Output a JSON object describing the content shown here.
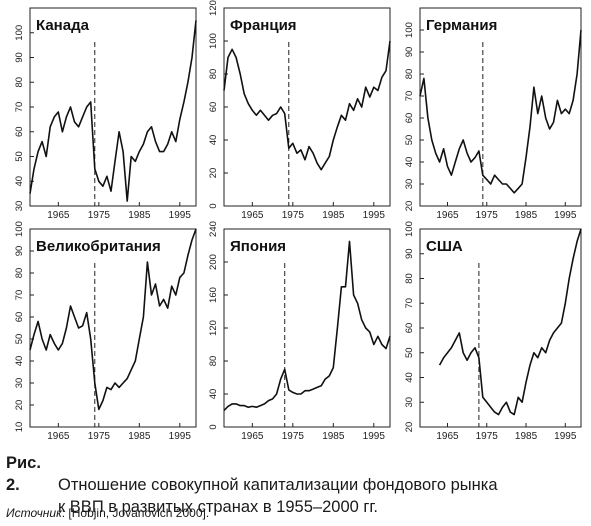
{
  "figure": {
    "label": "Рис. 2.",
    "caption_line1": "Отношение совокупной капитализации фондового рынка",
    "caption_line2": "к ВВП в развитых странах в 1955–2000 гг.",
    "source_prefix": "Источник",
    "source_text": ": [Hobjin, Jovanovich 2000]."
  },
  "chart_data": [
    {
      "type": "line",
      "title": "Канада",
      "xlim": [
        1958,
        1999
      ],
      "ylim": [
        30,
        110
      ],
      "xticks": [
        1965,
        1975,
        1985,
        1995
      ],
      "yticks": [
        30,
        40,
        50,
        60,
        70,
        80,
        90,
        100
      ],
      "vline": 1974,
      "series": [
        {
          "x": [
            1958,
            1959,
            1960,
            1961,
            1962,
            1963,
            1964,
            1965,
            1966,
            1967,
            1968,
            1969,
            1970,
            1971,
            1972,
            1973,
            1974,
            1975,
            1976,
            1977,
            1978,
            1979,
            1980,
            1981,
            1982,
            1983,
            1984,
            1985,
            1986,
            1987,
            1988,
            1989,
            1990,
            1991,
            1992,
            1993,
            1994,
            1995,
            1996,
            1997,
            1998,
            1999
          ],
          "y": [
            35,
            45,
            52,
            56,
            50,
            62,
            66,
            68,
            60,
            66,
            70,
            64,
            62,
            66,
            70,
            72,
            45,
            40,
            38,
            42,
            36,
            48,
            60,
            52,
            32,
            50,
            48,
            52,
            55,
            60,
            62,
            56,
            52,
            52,
            55,
            60,
            56,
            65,
            72,
            80,
            90,
            105
          ]
        }
      ]
    },
    {
      "type": "line",
      "title": "Франция",
      "xlim": [
        1958,
        1999
      ],
      "ylim": [
        0,
        120
      ],
      "xticks": [
        1965,
        1975,
        1985,
        1995
      ],
      "yticks": [
        0,
        20,
        40,
        60,
        80,
        100,
        120
      ],
      "vline": 1974,
      "series": [
        {
          "x": [
            1958,
            1959,
            1960,
            1961,
            1962,
            1963,
            1964,
            1965,
            1966,
            1967,
            1968,
            1969,
            1970,
            1971,
            1972,
            1973,
            1974,
            1975,
            1976,
            1977,
            1978,
            1979,
            1980,
            1981,
            1982,
            1983,
            1984,
            1985,
            1986,
            1987,
            1988,
            1989,
            1990,
            1991,
            1992,
            1993,
            1994,
            1995,
            1996,
            1997,
            1998,
            1999
          ],
          "y": [
            70,
            90,
            95,
            90,
            80,
            68,
            62,
            58,
            55,
            58,
            55,
            52,
            55,
            56,
            60,
            56,
            35,
            38,
            32,
            34,
            28,
            36,
            32,
            26,
            22,
            26,
            30,
            40,
            48,
            55,
            52,
            62,
            58,
            65,
            60,
            72,
            66,
            72,
            70,
            78,
            82,
            100
          ]
        }
      ]
    },
    {
      "type": "line",
      "title": "Германия",
      "xlim": [
        1958,
        1999
      ],
      "ylim": [
        20,
        110
      ],
      "xticks": [
        1965,
        1975,
        1985,
        1995
      ],
      "yticks": [
        20,
        30,
        40,
        50,
        60,
        70,
        80,
        90,
        100
      ],
      "vline": 1974,
      "series": [
        {
          "x": [
            1958,
            1959,
            1960,
            1961,
            1962,
            1963,
            1964,
            1965,
            1966,
            1967,
            1968,
            1969,
            1970,
            1971,
            1972,
            1973,
            1974,
            1975,
            1976,
            1977,
            1978,
            1979,
            1980,
            1981,
            1982,
            1983,
            1984,
            1985,
            1986,
            1987,
            1988,
            1989,
            1990,
            1991,
            1992,
            1993,
            1994,
            1995,
            1996,
            1997,
            1998,
            1999
          ],
          "y": [
            70,
            78,
            60,
            50,
            44,
            40,
            46,
            38,
            34,
            40,
            46,
            50,
            44,
            40,
            42,
            45,
            34,
            32,
            30,
            34,
            32,
            30,
            30,
            28,
            26,
            28,
            30,
            42,
            56,
            74,
            62,
            70,
            60,
            55,
            58,
            68,
            62,
            64,
            62,
            68,
            80,
            100
          ]
        }
      ]
    },
    {
      "type": "line",
      "title": "Великобритания",
      "xlim": [
        1958,
        1999
      ],
      "ylim": [
        10,
        100
      ],
      "xticks": [
        1965,
        1975,
        1985,
        1995
      ],
      "yticks": [
        10,
        20,
        30,
        40,
        50,
        60,
        70,
        80,
        90,
        100
      ],
      "vline": 1974,
      "series": [
        {
          "x": [
            1958,
            1959,
            1960,
            1961,
            1962,
            1963,
            1964,
            1965,
            1966,
            1967,
            1968,
            1969,
            1970,
            1971,
            1972,
            1973,
            1974,
            1975,
            1976,
            1977,
            1978,
            1979,
            1980,
            1981,
            1982,
            1983,
            1984,
            1985,
            1986,
            1987,
            1988,
            1989,
            1990,
            1991,
            1992,
            1993,
            1994,
            1995,
            1996,
            1997,
            1998,
            1999
          ],
          "y": [
            45,
            52,
            58,
            50,
            45,
            52,
            48,
            45,
            48,
            55,
            65,
            60,
            55,
            56,
            62,
            50,
            30,
            18,
            22,
            28,
            27,
            30,
            28,
            30,
            32,
            36,
            40,
            50,
            60,
            85,
            70,
            75,
            65,
            68,
            64,
            74,
            70,
            78,
            80,
            88,
            95,
            100
          ]
        }
      ]
    },
    {
      "type": "line",
      "title": "Япония",
      "xlim": [
        1958,
        1999
      ],
      "ylim": [
        0,
        240
      ],
      "xticks": [
        1965,
        1975,
        1985,
        1995
      ],
      "yticks": [
        0,
        40,
        80,
        120,
        160,
        200,
        240
      ],
      "vline": 1973,
      "series": [
        {
          "x": [
            1958,
            1959,
            1960,
            1961,
            1962,
            1963,
            1964,
            1965,
            1966,
            1967,
            1968,
            1969,
            1970,
            1971,
            1972,
            1973,
            1974,
            1975,
            1976,
            1977,
            1978,
            1979,
            1980,
            1981,
            1982,
            1983,
            1984,
            1985,
            1986,
            1987,
            1988,
            1989,
            1990,
            1991,
            1992,
            1993,
            1994,
            1995,
            1996,
            1997,
            1998,
            1999
          ],
          "y": [
            20,
            25,
            28,
            28,
            26,
            26,
            24,
            25,
            24,
            26,
            28,
            32,
            34,
            40,
            58,
            70,
            45,
            42,
            40,
            40,
            44,
            44,
            46,
            48,
            50,
            58,
            62,
            72,
            120,
            170,
            170,
            225,
            160,
            150,
            130,
            120,
            115,
            100,
            110,
            100,
            95,
            110
          ]
        }
      ]
    },
    {
      "type": "line",
      "title": "США",
      "xlim": [
        1958,
        1999
      ],
      "ylim": [
        20,
        100
      ],
      "xticks": [
        1965,
        1975,
        1985,
        1995
      ],
      "yticks": [
        20,
        30,
        40,
        50,
        60,
        70,
        80,
        90,
        100
      ],
      "vline": 1973,
      "series": [
        {
          "x": [
            1963,
            1964,
            1965,
            1966,
            1967,
            1968,
            1969,
            1970,
            1971,
            1972,
            1973,
            1974,
            1975,
            1976,
            1977,
            1978,
            1979,
            1980,
            1981,
            1982,
            1983,
            1984,
            1985,
            1986,
            1987,
            1988,
            1989,
            1990,
            1991,
            1992,
            1993,
            1994,
            1995,
            1996,
            1997,
            1998,
            1999
          ],
          "y": [
            45,
            48,
            50,
            52,
            55,
            58,
            50,
            47,
            50,
            52,
            48,
            32,
            30,
            28,
            26,
            25,
            28,
            30,
            26,
            25,
            32,
            30,
            38,
            45,
            50,
            48,
            52,
            50,
            55,
            58,
            60,
            62,
            70,
            80,
            88,
            95,
            100
          ]
        }
      ]
    }
  ]
}
